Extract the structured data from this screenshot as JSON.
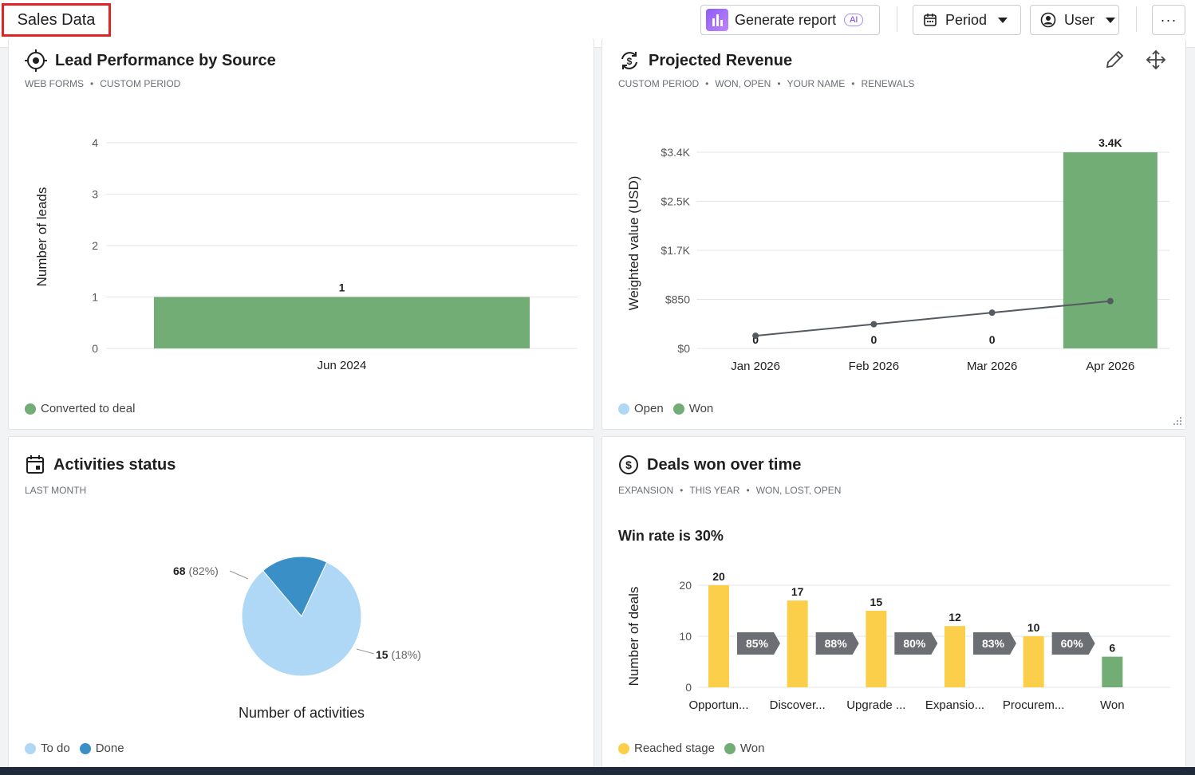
{
  "header": {
    "title": "Sales Data",
    "generate_label": "Generate report",
    "ai_badge": "AI",
    "period_label": "Period",
    "user_label": "User",
    "more_label": "···"
  },
  "cards": {
    "lead": {
      "title": "Lead Performance by Source",
      "subtitles": [
        "WEB FORMS",
        "CUSTOM PERIOD"
      ],
      "legend": [
        {
          "label": "Converted to deal",
          "color": "#72ad76"
        }
      ]
    },
    "revenue": {
      "title": "Projected Revenue",
      "subtitles": [
        "CUSTOM PERIOD",
        "WON, OPEN",
        "YOUR NAME",
        "RENEWALS"
      ],
      "legend": [
        {
          "label": "Open",
          "color": "#aed8f5"
        },
        {
          "label": "Won",
          "color": "#72ad76"
        }
      ]
    },
    "activities": {
      "title": "Activities status",
      "subtitles": [
        "LAST MONTH"
      ],
      "legend": [
        {
          "label": "To do",
          "color": "#aed8f5"
        },
        {
          "label": "Done",
          "color": "#3a8fc7"
        }
      ]
    },
    "deals": {
      "title": "Deals won over time",
      "subtitles": [
        "EXPANSION",
        "THIS YEAR",
        "WON, LOST, OPEN"
      ],
      "win_rate": "Win rate is 30%",
      "legend": [
        {
          "label": "Reached stage",
          "color": "#fccf4a"
        },
        {
          "label": "Won",
          "color": "#72ad76"
        }
      ]
    }
  },
  "chart_data": [
    {
      "id": "lead",
      "type": "bar",
      "categories": [
        "Jun 2024"
      ],
      "series": [
        {
          "name": "Converted to deal",
          "values": [
            1
          ],
          "color": "#72ad76"
        }
      ],
      "data_labels": [
        "1"
      ],
      "ylabel": "Number of leads",
      "yticks": [
        "0",
        "1",
        "2",
        "3",
        "4"
      ],
      "ylim": [
        0,
        4
      ],
      "grid": true
    },
    {
      "id": "revenue",
      "type": "bar",
      "categories": [
        "Jan 2026",
        "Feb 2026",
        "Mar 2026",
        "Apr 2026"
      ],
      "series": [
        {
          "name": "Won",
          "values": [
            0,
            0,
            0,
            3400
          ],
          "color": "#72ad76"
        }
      ],
      "line": {
        "values": [
          220,
          420,
          620,
          820
        ],
        "color": "#555a60"
      },
      "data_labels": [
        "0",
        "0",
        "0",
        "3.4K"
      ],
      "ylabel": "Weighted value (USD)",
      "yticks": [
        "$0",
        "$850",
        "$1.7K",
        "$2.5K",
        "$3.4K"
      ],
      "ytick_values": [
        0,
        850,
        1700,
        2550,
        3400
      ],
      "ylim": [
        0,
        3400
      ],
      "grid": true
    },
    {
      "id": "activities",
      "type": "pie",
      "slices": [
        {
          "name": "To do",
          "value": 68,
          "label": "68",
          "pct": "(82%)",
          "color": "#aed8f5"
        },
        {
          "name": "Done",
          "value": 15,
          "label": "15",
          "pct": "(18%)",
          "color": "#3a8fc7"
        }
      ],
      "xlabel": "Number of activities"
    },
    {
      "id": "deals",
      "type": "bar",
      "categories": [
        "Opportun...",
        "Discover...",
        "Upgrade ...",
        "Expansio...",
        "Procurem...",
        "Won"
      ],
      "values": [
        20,
        17,
        15,
        12,
        10,
        6
      ],
      "colors": [
        "#fccf4a",
        "#fccf4a",
        "#fccf4a",
        "#fccf4a",
        "#fccf4a",
        "#72ad76"
      ],
      "conversion_rates": [
        "85%",
        "88%",
        "80%",
        "83%",
        "60%"
      ],
      "ylabel": "Number of deals",
      "yticks": [
        "0",
        "10",
        "20"
      ],
      "ylim": [
        0,
        20
      ],
      "grid": true
    }
  ]
}
